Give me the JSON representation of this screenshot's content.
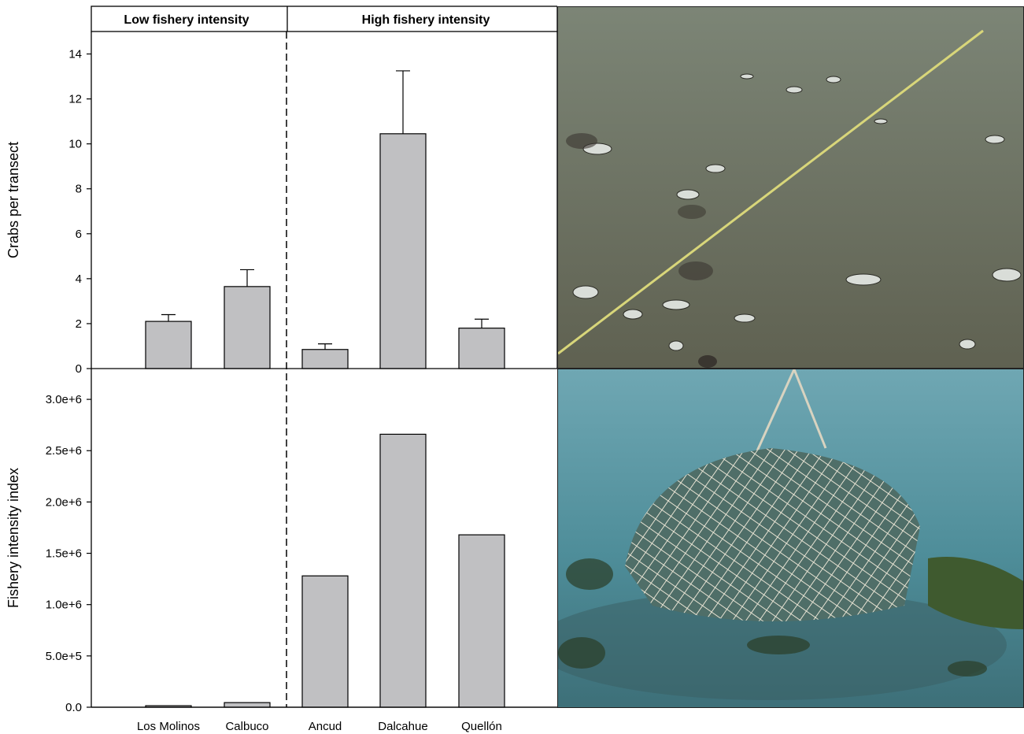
{
  "groups": [
    "Low fishery intensity",
    "High fishery intensity"
  ],
  "colors": {
    "bar_fill": "#c0c0c2",
    "axis": "#000000"
  },
  "chart_data": [
    {
      "type": "bar",
      "categories": [
        "Los Molinos",
        "Calbuco",
        "Ancud",
        "Dalcahue",
        "Quellón"
      ],
      "values": [
        2.1,
        3.65,
        0.85,
        10.45,
        1.8
      ],
      "errors": [
        0.3,
        0.75,
        0.25,
        2.8,
        0.4
      ],
      "ylabel": "Crabs per transect",
      "ylim": [
        0,
        15
      ],
      "yticks": [
        "0",
        "2",
        "4",
        "6",
        "8",
        "10",
        "12",
        "14"
      ],
      "ytick_values": [
        0,
        2,
        4,
        6,
        8,
        10,
        12,
        14
      ]
    },
    {
      "type": "bar",
      "categories": [
        "Los Molinos",
        "Calbuco",
        "Ancud",
        "Dalcahue",
        "Quellón"
      ],
      "values": [
        15000,
        45000,
        1280000,
        2660000,
        1680000
      ],
      "ylabel": "Fishery intensity index",
      "ylim": [
        0,
        3300000
      ],
      "yticks": [
        "0.0",
        "5.0e+5",
        "1.0e+6",
        "1.5e+6",
        "2.0e+6",
        "2.5e+6",
        "3.0e+6"
      ],
      "ytick_values": [
        0,
        500000,
        1000000,
        1500000,
        2000000,
        2500000,
        3000000
      ]
    }
  ],
  "photos": [
    {
      "subject": "seafloor transect line with mussel shells"
    },
    {
      "subject": "crab trap on seafloor"
    }
  ]
}
